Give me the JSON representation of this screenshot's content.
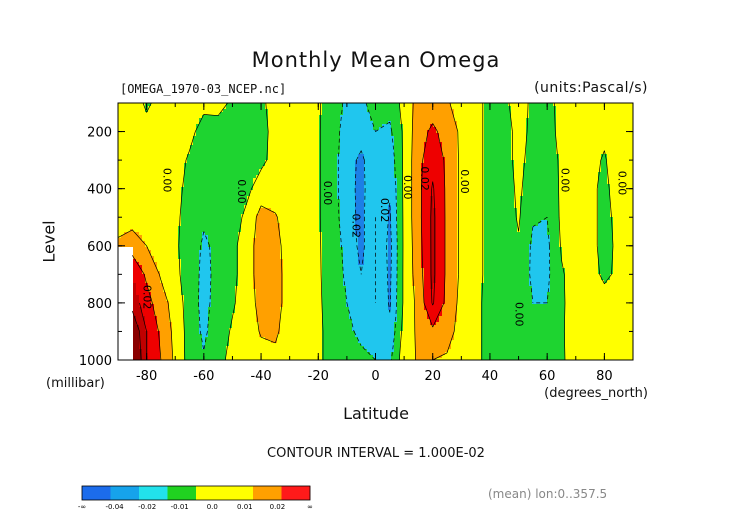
{
  "figure": {
    "title": "Monthly Mean Omega",
    "file_label": "[OMEGA_1970-03_NCEP.nc]",
    "units_label": "(units:Pascal/s)",
    "xlabel": "Latitude",
    "ylabel": "Level",
    "y_unit": "(millibar)",
    "x_unit": "(degrees_north)",
    "contour_interval_label": "CONTOUR INTERVAL = 1.000E-02",
    "mean_note": "(mean) lon:0..357.5"
  },
  "chart_data": {
    "type": "heatmap",
    "title": "Monthly Mean Omega",
    "xlabel": "Latitude",
    "ylabel": "Level",
    "xlim": [
      -90,
      90
    ],
    "ylim": [
      1000,
      100
    ],
    "y_reversed": true,
    "x_ticks": [
      -80,
      -60,
      -40,
      -20,
      0,
      20,
      40,
      60,
      80
    ],
    "x_tick_labels": [
      "-80",
      "-60",
      "-40",
      "-20",
      "0",
      "20",
      "40",
      "60",
      "80"
    ],
    "y_ticks": [
      200,
      400,
      600,
      800,
      1000
    ],
    "y_tick_labels": [
      "200",
      "400",
      "600",
      "800",
      "1000"
    ],
    "latitudes": [
      -90,
      -85,
      -80,
      -75,
      -70,
      -65,
      -60,
      -55,
      -50,
      -45,
      -40,
      -35,
      -30,
      -25,
      -20,
      -15,
      -10,
      -5,
      0,
      5,
      10,
      15,
      20,
      25,
      30,
      35,
      40,
      45,
      50,
      55,
      60,
      65,
      70,
      75,
      80,
      85,
      90
    ],
    "levels": [
      100,
      200,
      300,
      400,
      500,
      600,
      700,
      800,
      900,
      1000
    ],
    "omega_values": [
      [
        0.003,
        0.003,
        -0.001,
        0.002,
        0.004,
        0.003,
        0.002,
        0.004,
        -0.002,
        -0.004,
        -0.001,
        0.002,
        0.004,
        0.004,
        0.001,
        -0.005,
        -0.012,
        -0.012,
        -0.006,
        -0.006,
        0.003,
        0.014,
        0.015,
        0.011,
        0.006,
        0.002,
        -0.002,
        -0.001,
        0.002,
        -0.001,
        -0.002,
        0.002,
        0.004,
        0.003,
        0.001,
        0.004,
        0.003
      ],
      [
        0.004,
        0.004,
        0.002,
        0.003,
        0.004,
        0.002,
        -0.003,
        -0.005,
        -0.004,
        -0.004,
        -0.002,
        0.002,
        0.004,
        0.004,
        0.001,
        -0.006,
        -0.014,
        -0.016,
        -0.01,
        -0.012,
        0.002,
        0.016,
        0.022,
        0.016,
        0.008,
        0.003,
        -0.003,
        -0.004,
        0.003,
        -0.002,
        -0.004,
        0.003,
        0.005,
        0.004,
        0.002,
        0.006,
        0.005
      ],
      [
        0.004,
        0.005,
        0.004,
        0.003,
        0.003,
        -0.001,
        -0.004,
        -0.006,
        -0.006,
        -0.003,
        -0.002,
        0.003,
        0.004,
        0.004,
        0.001,
        -0.006,
        -0.016,
        -0.022,
        -0.013,
        -0.016,
        0.002,
        0.017,
        0.027,
        0.018,
        0.008,
        0.003,
        -0.003,
        -0.004,
        0.003,
        -0.004,
        -0.006,
        0.002,
        0.004,
        0.003,
        -0.001,
        0.006,
        0.004
      ],
      [
        0.005,
        0.005,
        0.005,
        0.003,
        0.002,
        -0.002,
        -0.005,
        -0.006,
        -0.006,
        -0.002,
        0.004,
        0.004,
        0.003,
        0.004,
        0.001,
        -0.006,
        -0.016,
        -0.023,
        -0.012,
        -0.019,
        0.002,
        0.017,
        0.031,
        0.018,
        0.008,
        0.003,
        -0.003,
        -0.005,
        0.002,
        -0.006,
        -0.008,
        0.002,
        0.004,
        0.002,
        -0.002,
        0.004,
        0.003
      ],
      [
        0.005,
        0.006,
        0.006,
        0.004,
        0.001,
        -0.002,
        -0.008,
        -0.007,
        -0.004,
        0.002,
        0.014,
        0.011,
        0.004,
        0.004,
        0.001,
        -0.006,
        -0.015,
        -0.023,
        -0.01,
        -0.021,
        0.002,
        0.017,
        0.032,
        0.018,
        0.008,
        0.003,
        -0.003,
        -0.005,
        0.001,
        -0.009,
        -0.01,
        0.002,
        0.005,
        0.003,
        -0.003,
        0.003,
        0.003
      ],
      [
        0.012,
        0.015,
        0.01,
        0.005,
        0.001,
        -0.003,
        -0.012,
        -0.007,
        -0.002,
        0.004,
        0.016,
        0.014,
        0.004,
        0.004,
        0.001,
        -0.005,
        -0.013,
        -0.023,
        -0.01,
        -0.023,
        0.002,
        0.016,
        0.032,
        0.018,
        0.008,
        0.003,
        -0.003,
        -0.006,
        -0.001,
        -0.012,
        -0.012,
        0.001,
        0.004,
        0.003,
        -0.003,
        0.002,
        0.002
      ],
      [
        0.03,
        0.03,
        0.018,
        0.009,
        0.002,
        -0.004,
        -0.013,
        -0.007,
        -0.002,
        0.004,
        0.016,
        0.015,
        0.004,
        0.003,
        0.001,
        -0.004,
        -0.012,
        -0.02,
        -0.01,
        -0.022,
        0.002,
        0.015,
        0.032,
        0.018,
        0.008,
        0.003,
        -0.003,
        -0.006,
        -0.003,
        -0.012,
        -0.012,
        -0.001,
        0.004,
        0.004,
        -0.002,
        0.002,
        0.002
      ],
      [
        0.04,
        0.036,
        0.024,
        0.014,
        0.006,
        -0.005,
        -0.013,
        -0.006,
        -0.001,
        0.004,
        0.014,
        0.015,
        0.004,
        0.003,
        0.001,
        -0.003,
        -0.01,
        -0.015,
        -0.01,
        -0.021,
        0.002,
        0.013,
        0.031,
        0.017,
        0.007,
        0.003,
        -0.004,
        -0.007,
        -0.005,
        -0.01,
        -0.01,
        -0.002,
        0.006,
        0.006,
        0.004,
        0.001,
        0.002
      ],
      [
        0.052,
        0.05,
        0.03,
        0.018,
        0.007,
        -0.004,
        -0.012,
        -0.004,
        0.001,
        0.004,
        0.011,
        0.012,
        0.004,
        0.003,
        0.001,
        -0.002,
        -0.008,
        -0.012,
        -0.012,
        -0.018,
        0.004,
        0.012,
        0.018,
        0.013,
        0.007,
        0.003,
        -0.004,
        -0.007,
        -0.006,
        -0.005,
        -0.006,
        -0.002,
        0.008,
        0.008,
        0.008,
        0.002,
        0.01
      ],
      [
        0.055,
        0.056,
        0.03,
        0.02,
        0.008,
        -0.004,
        -0.009,
        -0.002,
        0.002,
        0.004,
        0.006,
        0.007,
        0.004,
        0.003,
        0.001,
        -0.002,
        -0.005,
        -0.008,
        -0.01,
        -0.012,
        0.006,
        0.011,
        0.01,
        0.009,
        0.006,
        0.003,
        -0.004,
        -0.007,
        -0.005,
        -0.002,
        -0.002,
        -0.002,
        0.006,
        0.005,
        0.004,
        0.004,
        0.004
      ]
    ],
    "missing_region": {
      "lat_max": -85,
      "level_min": 600
    },
    "contour_labels": [
      {
        "text": "0.00",
        "lat": -73,
        "level": 370
      },
      {
        "text": "0.00",
        "lat": -47,
        "level": 410
      },
      {
        "text": "0.00",
        "lat": -17,
        "level": 415
      },
      {
        "text": "0.02",
        "lat": -7,
        "level": 530
      },
      {
        "text": "0.02",
        "lat": 3,
        "level": 475
      },
      {
        "text": "0.00",
        "lat": 11,
        "level": 395
      },
      {
        "text": "0.02",
        "lat": 17,
        "level": 365
      },
      {
        "text": "0.00",
        "lat": 31,
        "level": 375
      },
      {
        "text": "0.00",
        "lat": 50,
        "level": 840
      },
      {
        "text": "0.00",
        "lat": 66,
        "level": 370
      },
      {
        "text": "0.00",
        "lat": 86,
        "level": 380
      },
      {
        "text": "0.02",
        "lat": -80,
        "level": 780
      }
    ],
    "colorbar": {
      "colors": [
        "#1c6cec",
        "#16a3ec",
        "#22e2ec",
        "#20d220",
        "#ffff00",
        "#ffff00",
        "#ffa000",
        "#ff1a1a"
      ],
      "labels": [
        "-∞",
        "-0.04",
        "-0.02",
        "-0.01",
        "0.0",
        "0.01",
        "0.02",
        "∞"
      ],
      "bounds": [
        -0.04,
        -0.02,
        -0.01,
        0.0,
        0.01,
        0.02
      ]
    },
    "palette": {
      "le_-0.02": "#1c7fe6",
      "-0.02_-0.01": "#20c6ee",
      "-0.01_0.0": "#1ed430",
      "0.0_0.01": "#ffff00",
      "0.01_0.02": "#ffa000",
      "0.02_0.03": "#ee0000",
      "0.03_0.04": "#c00000",
      "gt_0.04": "#8a0000"
    },
    "grid": false,
    "legend": "bottom"
  }
}
